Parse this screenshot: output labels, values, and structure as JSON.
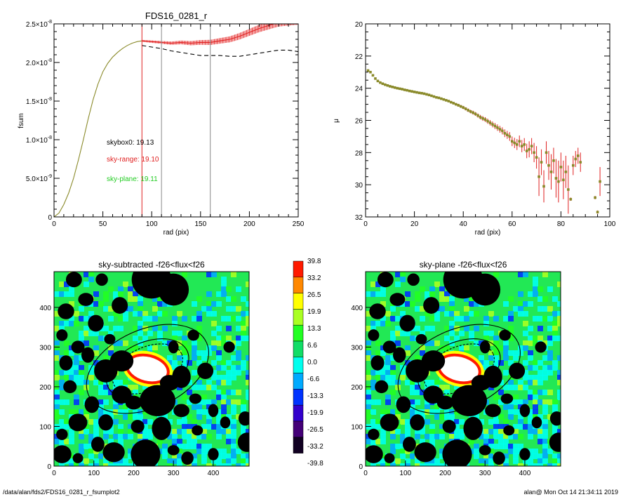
{
  "chart_data": [
    {
      "type": "line",
      "title": "FDS16_0281_r",
      "xlabel": "rad (pix)",
      "ylabel": "fsum",
      "xlim": [
        0,
        250
      ],
      "ylim": [
        0,
        2.5e-08
      ],
      "xticks": [
        "0",
        "50",
        "100",
        "150",
        "200",
        "250"
      ],
      "yticks": [
        {
          "v": 0,
          "label": "0"
        },
        {
          "v": 5e-09,
          "label": "5.0×10",
          "exp": "-9"
        },
        {
          "v": 1e-08,
          "label": "1.0×10",
          "exp": "-8"
        },
        {
          "v": 1.5e-08,
          "label": "1.5×10",
          "exp": "-8"
        },
        {
          "v": 2e-08,
          "label": "2.0×10",
          "exp": "-8"
        },
        {
          "v": 2.5e-08,
          "label": "2.5×10",
          "exp": "-8"
        }
      ],
      "series": [
        {
          "style": "solid",
          "color": "#8a8a2a",
          "x": [
            0,
            5,
            10,
            15,
            20,
            25,
            30,
            35,
            40,
            45,
            50,
            55,
            60,
            65,
            70,
            75,
            80,
            85,
            90
          ],
          "y": [
            0,
            5e-10,
            1.6e-09,
            3.1e-09,
            5e-09,
            7.4e-09,
            1e-08,
            1.27e-08,
            1.52e-08,
            1.72e-08,
            1.88e-08,
            1.99e-08,
            2.07e-08,
            2.13e-08,
            2.18e-08,
            2.22e-08,
            2.25e-08,
            2.27e-08,
            2.28e-08
          ]
        },
        {
          "style": "solid",
          "color": "#e02020",
          "x": [
            90,
            100,
            110,
            120,
            130,
            140,
            150,
            160,
            170,
            180,
            190,
            200,
            210,
            220,
            230,
            250
          ],
          "y": [
            2.28e-08,
            2.27e-08,
            2.26e-08,
            2.25e-08,
            2.26e-08,
            2.25e-08,
            2.26e-08,
            2.26e-08,
            2.28e-08,
            2.3e-08,
            2.34e-08,
            2.39e-08,
            2.44e-08,
            2.48e-08,
            2.52e-08,
            2.55e-08
          ]
        },
        {
          "style": "dashed",
          "color": "#000000",
          "x": [
            90,
            100,
            110,
            120,
            130,
            140,
            150,
            160,
            170,
            180,
            190,
            200,
            210,
            220,
            230,
            240,
            250
          ],
          "y": [
            2.22e-08,
            2.2e-08,
            2.18e-08,
            2.15e-08,
            2.13e-08,
            2.11e-08,
            2.09e-08,
            2.09e-08,
            2.09e-08,
            2.08e-08,
            2.08e-08,
            2.1e-08,
            2.12e-08,
            2.14e-08,
            2.16e-08,
            2.16e-08,
            2.14e-08
          ]
        }
      ],
      "vlines": [
        {
          "x": 90,
          "color": "#e02020"
        },
        {
          "x": 110,
          "color": "#888888"
        },
        {
          "x": 160,
          "color": "#888888"
        }
      ],
      "annotations": [
        {
          "text": "skybox0: 19.13",
          "color": "#000000"
        },
        {
          "text": "sky-range: 19.10",
          "color": "#e02020"
        },
        {
          "text": "sky-plane: 19.11",
          "color": "#22cc22"
        }
      ]
    },
    {
      "type": "scatter",
      "title": "",
      "xlabel": "rad (pix)",
      "ylabel": "μ",
      "xlim": [
        0,
        100
      ],
      "ylim": [
        32,
        20
      ],
      "xticks": [
        "0",
        "20",
        "40",
        "60",
        "80",
        "100"
      ],
      "yticks": [
        "20",
        "22",
        "24",
        "26",
        "28",
        "30",
        "32"
      ],
      "points": {
        "x": [
          1,
          2,
          3,
          4,
          5,
          6,
          7,
          8,
          9,
          10,
          11,
          12,
          13,
          14,
          15,
          16,
          17,
          18,
          19,
          20,
          21,
          22,
          23,
          24,
          25,
          26,
          27,
          28,
          29,
          30,
          31,
          32,
          33,
          34,
          35,
          36,
          37,
          38,
          39,
          40,
          41,
          42,
          43,
          44,
          45,
          46,
          47,
          48,
          49,
          50,
          51,
          52,
          53,
          54,
          55,
          56,
          57,
          58,
          59,
          60,
          61,
          62,
          63,
          64,
          65,
          66,
          67,
          68,
          69,
          70,
          71,
          72,
          73,
          74,
          75,
          76,
          77,
          78,
          79,
          80,
          81,
          82,
          83,
          84,
          85,
          86,
          87,
          88,
          94,
          95,
          96
        ],
        "y": [
          22.9,
          23.0,
          23.2,
          23.4,
          23.55,
          23.65,
          23.72,
          23.78,
          23.83,
          23.88,
          23.92,
          23.96,
          24.0,
          24.03,
          24.06,
          24.1,
          24.13,
          24.17,
          24.2,
          24.23,
          24.26,
          24.29,
          24.31,
          24.34,
          24.38,
          24.42,
          24.47,
          24.52,
          24.57,
          24.6,
          24.65,
          24.7,
          24.75,
          24.8,
          24.87,
          24.93,
          25.0,
          25.06,
          25.13,
          25.2,
          25.28,
          25.37,
          25.45,
          25.52,
          25.6,
          25.7,
          25.8,
          25.88,
          25.95,
          26.05,
          26.15,
          26.25,
          26.35,
          26.45,
          26.55,
          26.65,
          26.8,
          26.9,
          27.0,
          27.3,
          27.4,
          27.5,
          27.3,
          27.6,
          27.5,
          27.9,
          27.8,
          27.6,
          28.0,
          28.3,
          29.5,
          28.6,
          30.1,
          28.0,
          28.8,
          29.2,
          28.5,
          29.6,
          29.8,
          28.9,
          29.7,
          29.2,
          30.3,
          30.9,
          28.8,
          28.4,
          28.2,
          28.6,
          30.8,
          31.7,
          29.8
        ],
        "err": [
          0.02,
          0.02,
          0.02,
          0.02,
          0.02,
          0.02,
          0.02,
          0.02,
          0.03,
          0.03,
          0.03,
          0.03,
          0.03,
          0.03,
          0.03,
          0.03,
          0.04,
          0.04,
          0.04,
          0.04,
          0.04,
          0.04,
          0.05,
          0.05,
          0.05,
          0.05,
          0.05,
          0.06,
          0.06,
          0.06,
          0.06,
          0.07,
          0.07,
          0.07,
          0.08,
          0.08,
          0.08,
          0.09,
          0.09,
          0.1,
          0.1,
          0.11,
          0.11,
          0.12,
          0.12,
          0.13,
          0.14,
          0.15,
          0.15,
          0.16,
          0.17,
          0.18,
          0.19,
          0.2,
          0.21,
          0.22,
          0.24,
          0.25,
          0.27,
          0.3,
          0.32,
          0.34,
          0.36,
          0.38,
          0.4,
          0.45,
          0.5,
          0.5,
          0.6,
          0.7,
          1.2,
          0.8,
          1.0,
          0.7,
          0.9,
          1.1,
          0.8,
          1.2,
          1.3,
          0.9,
          1.2,
          1.0,
          1.5,
          0.1,
          0.6,
          0.5,
          0.5,
          0.6,
          0.1,
          0.1,
          0.9
        ],
        "color": "#8a8a2a",
        "err_color": "#e02020"
      }
    },
    {
      "type": "heatmap",
      "title": "sky-subtracted -f26<flux<f26",
      "xticks": [
        "0",
        "100",
        "200",
        "300",
        "400"
      ],
      "yticks": [
        "0",
        "100",
        "200",
        "300",
        "400"
      ],
      "xlim": [
        0,
        490
      ],
      "ylim": [
        0,
        490
      ]
    },
    {
      "type": "heatmap",
      "title": "sky-plane -f26<flux<f26",
      "xticks": [
        "0",
        "100",
        "200",
        "300",
        "400"
      ],
      "yticks": [
        "0",
        "100",
        "200",
        "300",
        "400"
      ],
      "xlim": [
        0,
        490
      ],
      "ylim": [
        0,
        490
      ]
    }
  ],
  "colorbar": {
    "labels": [
      "39.8",
      "33.2",
      "26.5",
      "19.9",
      "13.3",
      "6.6",
      "0.0",
      "-6.6",
      "-13.3",
      "-19.9",
      "-26.5",
      "-33.2",
      "-39.8"
    ],
    "colors": [
      "#ff1a00",
      "#ff8800",
      "#ffff00",
      "#aaff22",
      "#22ff22",
      "#11dd66",
      "#00ffee",
      "#00aaff",
      "#0033ff",
      "#3300cc",
      "#440077",
      "#110022"
    ]
  },
  "footer": {
    "left": "/data/alan/fds2/FDS16_0281_r_fsumplot2",
    "right": "alan@  Mon Oct 14 21:34:11 2019"
  }
}
